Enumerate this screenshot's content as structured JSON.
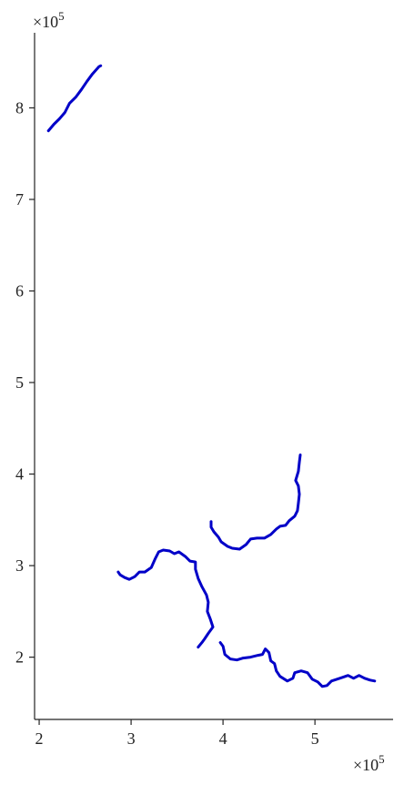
{
  "chart_data": {
    "type": "line",
    "title": "",
    "xlabel": "",
    "ylabel": "",
    "x_multiplier": "×10",
    "x_exponent": "5",
    "y_multiplier": "×10",
    "y_exponent": "5",
    "xlim": [
      1.95,
      5.85
    ],
    "ylim": [
      1.32,
      8.82
    ],
    "x_ticks": [
      2,
      3,
      4,
      5
    ],
    "y_ticks": [
      2,
      3,
      4,
      5,
      6,
      7,
      8
    ],
    "x_tick_labels": [
      "2",
      "3",
      "4",
      "5"
    ],
    "y_tick_labels": [
      "2",
      "3",
      "4",
      "5",
      "6",
      "7",
      "8"
    ],
    "grid": false,
    "line_color": "#0000c8",
    "series": [
      {
        "points": [
          [
            2.1,
            7.75
          ],
          [
            2.16,
            7.82
          ],
          [
            2.22,
            7.88
          ],
          [
            2.28,
            7.95
          ],
          [
            2.33,
            8.05
          ],
          [
            2.4,
            8.12
          ],
          [
            2.46,
            8.2
          ],
          [
            2.52,
            8.29
          ],
          [
            2.58,
            8.37
          ],
          [
            2.65,
            8.45
          ],
          [
            2.67,
            8.46
          ]
        ]
      },
      {
        "points": [
          [
            3.87,
            3.48
          ],
          [
            3.87,
            3.42
          ],
          [
            3.9,
            3.37
          ],
          [
            3.95,
            3.31
          ],
          [
            3.98,
            3.26
          ],
          [
            4.05,
            3.21
          ],
          [
            4.1,
            3.19
          ],
          [
            4.18,
            3.18
          ],
          [
            4.25,
            3.23
          ],
          [
            4.3,
            3.29
          ],
          [
            4.37,
            3.3
          ],
          [
            4.45,
            3.3
          ],
          [
            4.52,
            3.34
          ],
          [
            4.58,
            3.4
          ],
          [
            4.62,
            3.43
          ],
          [
            4.68,
            3.44
          ],
          [
            4.72,
            3.49
          ],
          [
            4.78,
            3.54
          ],
          [
            4.81,
            3.6
          ],
          [
            4.82,
            3.68
          ],
          [
            4.83,
            3.78
          ],
          [
            4.82,
            3.87
          ],
          [
            4.79,
            3.93
          ],
          [
            4.82,
            4.03
          ],
          [
            4.83,
            4.13
          ],
          [
            4.84,
            4.21
          ]
        ]
      },
      {
        "points": [
          [
            3.73,
            2.11
          ],
          [
            3.77,
            2.16
          ],
          [
            3.8,
            2.2
          ],
          [
            3.84,
            2.26
          ],
          [
            3.89,
            2.33
          ],
          [
            3.86,
            2.42
          ],
          [
            3.83,
            2.5
          ],
          [
            3.84,
            2.6
          ],
          [
            3.82,
            2.68
          ],
          [
            3.77,
            2.77
          ],
          [
            3.73,
            2.86
          ],
          [
            3.7,
            2.96
          ],
          [
            3.7,
            3.04
          ],
          [
            3.64,
            3.05
          ],
          [
            3.59,
            3.1
          ],
          [
            3.52,
            3.15
          ],
          [
            3.47,
            3.13
          ],
          [
            3.42,
            3.16
          ],
          [
            3.35,
            3.17
          ],
          [
            3.3,
            3.15
          ],
          [
            3.26,
            3.07
          ],
          [
            3.22,
            2.98
          ],
          [
            3.15,
            2.93
          ],
          [
            3.09,
            2.93
          ],
          [
            3.04,
            2.88
          ],
          [
            2.98,
            2.85
          ],
          [
            2.93,
            2.87
          ],
          [
            2.88,
            2.9
          ],
          [
            2.86,
            2.93
          ]
        ]
      },
      {
        "points": [
          [
            3.97,
            2.16
          ],
          [
            4.0,
            2.12
          ],
          [
            4.02,
            2.03
          ],
          [
            4.08,
            1.98
          ],
          [
            4.15,
            1.97
          ],
          [
            4.22,
            1.99
          ],
          [
            4.3,
            2.0
          ],
          [
            4.38,
            2.02
          ],
          [
            4.43,
            2.03
          ],
          [
            4.46,
            2.09
          ],
          [
            4.5,
            2.05
          ],
          [
            4.52,
            1.96
          ],
          [
            4.56,
            1.93
          ],
          [
            4.58,
            1.85
          ],
          [
            4.62,
            1.79
          ],
          [
            4.7,
            1.74
          ],
          [
            4.76,
            1.77
          ],
          [
            4.78,
            1.83
          ],
          [
            4.85,
            1.85
          ],
          [
            4.92,
            1.83
          ],
          [
            4.97,
            1.76
          ],
          [
            5.03,
            1.73
          ],
          [
            5.08,
            1.68
          ],
          [
            5.13,
            1.69
          ],
          [
            5.18,
            1.74
          ],
          [
            5.24,
            1.76
          ],
          [
            5.3,
            1.78
          ],
          [
            5.36,
            1.8
          ],
          [
            5.42,
            1.77
          ],
          [
            5.48,
            1.8
          ],
          [
            5.54,
            1.77
          ],
          [
            5.6,
            1.75
          ],
          [
            5.65,
            1.74
          ]
        ]
      }
    ]
  }
}
